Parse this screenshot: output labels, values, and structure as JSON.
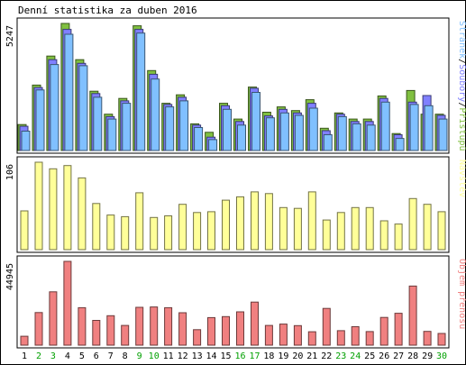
{
  "chart_data": {
    "title": "Denní statistika za duben 2016",
    "days": [
      "1",
      "2",
      "3",
      "4",
      "5",
      "6",
      "7",
      "8",
      "9",
      "10",
      "11",
      "12",
      "13",
      "14",
      "15",
      "16",
      "17",
      "18",
      "19",
      "20",
      "21",
      "22",
      "23",
      "24",
      "25",
      "26",
      "27",
      "28",
      "29",
      "30"
    ],
    "weekend_days": [
      "2",
      "3",
      "9",
      "10",
      "16",
      "17",
      "23",
      "24",
      "30"
    ],
    "colors": {
      "hits": "#80c040",
      "files": "#8080ff",
      "pages": "#80c0ff",
      "visits": "#ffff99",
      "kbytes": "#f08080",
      "weekday_label": "#000000",
      "weekend_label": "#00a000"
    },
    "charts": [
      {
        "type": "bar",
        "ymax_label": "5247",
        "ymax": 5247,
        "legend": {
          "parts": [
            "Stránek",
            "Soubory",
            "Přístupů"
          ],
          "separator": "/"
        },
        "series": [
          {
            "name": "Přístupů",
            "color": "hits",
            "values": [
              1070,
              2700,
              3900,
              5247,
              3750,
              2450,
              1500,
              2150,
              5150,
              3300,
              1950,
              2300,
              1100,
              750,
              1950,
              1300,
              2620,
              1580,
              1800,
              1650,
              2100,
              920,
              1550,
              1300,
              1300,
              2250,
              700,
              2480,
              1500,
              1500
            ]
          },
          {
            "name": "Soubory",
            "color": "files",
            "values": [
              1000,
              2600,
              3750,
              5000,
              3600,
              2350,
              1400,
              2050,
              5000,
              3150,
              1900,
              2200,
              1050,
              550,
              1850,
              1200,
              2570,
              1430,
              1700,
              1550,
              1950,
              820,
              1500,
              1200,
              1200,
              2150,
              650,
              2000,
              2270,
              1450
            ]
          },
          {
            "name": "Stránek",
            "color": "pages",
            "values": [
              800,
              2500,
              3550,
              4800,
              3500,
              2200,
              1300,
              1950,
              4850,
              2950,
              1800,
              2050,
              950,
              450,
              1700,
              1050,
              2400,
              1350,
              1550,
              1450,
              1750,
              650,
              1400,
              1100,
              1050,
              2000,
              500,
              1900,
              1850,
              1300
            ]
          }
        ]
      },
      {
        "type": "bar",
        "ymax_label": "106",
        "ymax": 106,
        "legend": {
          "parts": [
            "Návštěv"
          ],
          "separator": ""
        },
        "series": [
          {
            "name": "Návštěv",
            "color": "visits",
            "values": [
              47,
              106,
              98,
              102,
              87,
              56,
              42,
              40,
              69,
              39,
              41,
              55,
              45,
              46,
              60,
              64,
              70,
              68,
              51,
              50,
              70,
              36,
              45,
              51,
              51,
              35,
              31,
              62,
              55,
              46
            ]
          }
        ]
      },
      {
        "type": "bar",
        "ymax_label": "44945",
        "ymax": 44945,
        "legend": {
          "parts": [
            "Objem přenosu"
          ],
          "separator": ""
        },
        "series": [
          {
            "name": "Objem přenosu",
            "color": "kbytes",
            "values": [
              4800,
              17500,
              28600,
              44945,
              20100,
              13300,
              15800,
              10600,
              20300,
              20500,
              20100,
              17400,
              8300,
              14800,
              15300,
              17900,
              23100,
              10600,
              11300,
              10500,
              7200,
              19700,
              7800,
              9900,
              7300,
              14900,
              17100,
              31700,
              7400,
              6300
            ]
          }
        ]
      }
    ]
  }
}
